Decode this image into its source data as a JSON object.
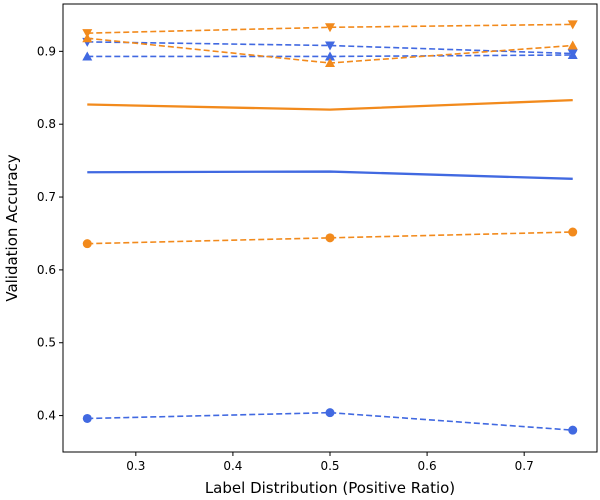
{
  "chart_data": {
    "type": "line",
    "title": "",
    "xlabel": "Label Distribution (Positive Ratio)",
    "ylabel": "Validation Accuracy",
    "x": [
      0.25,
      0.5,
      0.75
    ],
    "xlim": [
      0.225,
      0.775
    ],
    "ylim": [
      0.35,
      0.965
    ],
    "xticks": [
      0.3,
      0.4,
      0.5,
      0.6,
      0.7
    ],
    "yticks": [
      0.4,
      0.5,
      0.6,
      0.7,
      0.8,
      0.9
    ],
    "grid": false,
    "legend": false,
    "series": [
      {
        "color": "#4169E1",
        "style": "solid",
        "marker": "none",
        "values": [
          0.734,
          0.735,
          0.725
        ]
      },
      {
        "color": "#4169E1",
        "style": "dashed",
        "marker": "circle",
        "values": [
          0.396,
          0.404,
          0.38
        ]
      },
      {
        "color": "#4169E1",
        "style": "dashed",
        "marker": "triangle-up",
        "values": [
          0.893,
          0.893,
          0.895
        ]
      },
      {
        "color": "#4169E1",
        "style": "dashed",
        "marker": "triangle-down",
        "values": [
          0.913,
          0.908,
          0.897
        ]
      },
      {
        "color": "#F28A1C",
        "style": "solid",
        "marker": "none",
        "values": [
          0.827,
          0.82,
          0.833
        ]
      },
      {
        "color": "#F28A1C",
        "style": "dashed",
        "marker": "circle",
        "values": [
          0.636,
          0.644,
          0.652
        ]
      },
      {
        "color": "#F28A1C",
        "style": "dashed",
        "marker": "triangle-up",
        "values": [
          0.918,
          0.884,
          0.908
        ]
      },
      {
        "color": "#F28A1C",
        "style": "dashed",
        "marker": "triangle-down",
        "values": [
          0.925,
          0.933,
          0.937
        ]
      }
    ]
  }
}
